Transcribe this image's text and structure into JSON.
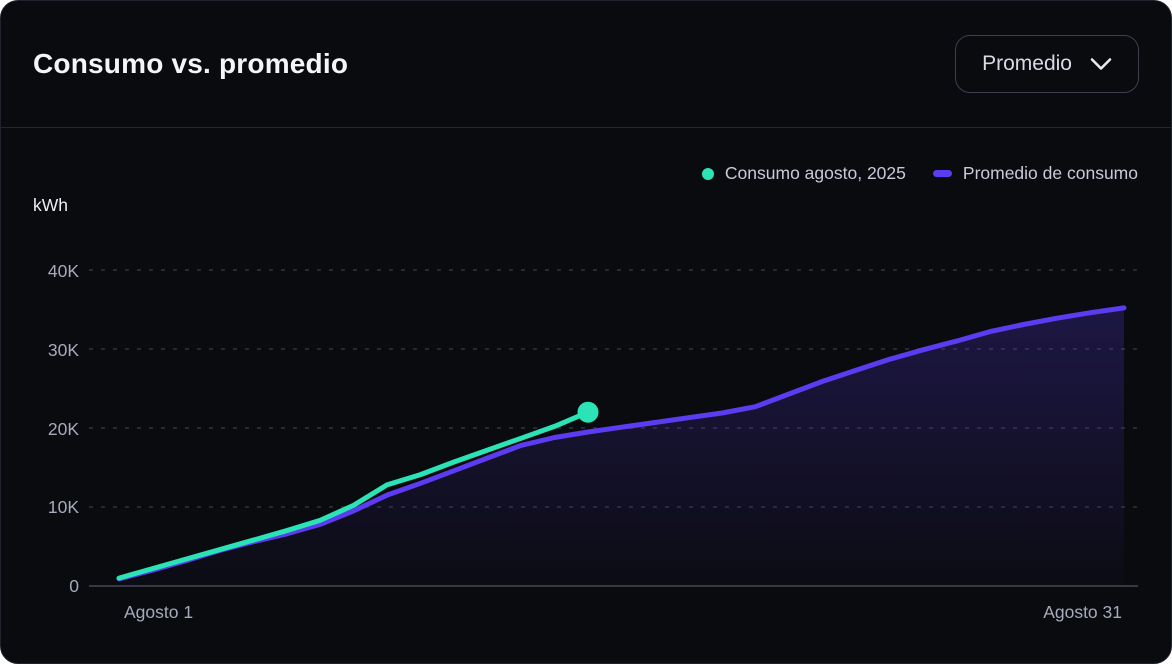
{
  "header": {
    "title": "Consumo vs. promedio",
    "dropdown_label": "Promedio"
  },
  "chart_data": {
    "type": "area",
    "title": "Consumo vs. promedio",
    "ylabel": "kWh",
    "x_axis": {
      "start_label": "Agosto 1",
      "end_label": "Agosto 31",
      "total_days": 31
    },
    "y_axis": {
      "ticks": [
        "0",
        "10K",
        "20K",
        "30K",
        "40K"
      ],
      "tick_values": [
        0,
        10000,
        20000,
        30000,
        40000
      ],
      "max": 40000
    },
    "grid": "horizontal-dashed",
    "legend_position": "top-right",
    "colors": {
      "background": "#0a0b0f",
      "grid": "#4a4d5a",
      "axis_baseline": "#363944",
      "tick_text": "#a7aabc"
    },
    "series": [
      {
        "name": "Consumo agosto, 2025",
        "color": "#2be3b4",
        "start_day": 1,
        "values_kwh": [
          1000,
          2200,
          3400,
          4600,
          5800,
          7000,
          8300,
          10200,
          12800,
          14100,
          15700,
          17200,
          18700,
          20200,
          22000
        ],
        "end_dot": true,
        "area": false
      },
      {
        "name": "Promedio de consumo",
        "color": "#5b3cf0",
        "start_day": 1,
        "values_kwh": [
          900,
          2000,
          3200,
          4500,
          5600,
          6600,
          7800,
          9500,
          11500,
          13000,
          14600,
          16200,
          17800,
          18800,
          19500,
          20100,
          20700,
          21300,
          21900,
          22700,
          24300,
          25900,
          27300,
          28700,
          29900,
          31000,
          32200,
          33100,
          33900,
          34600,
          35200
        ],
        "end_dot": false,
        "area": true
      }
    ]
  }
}
